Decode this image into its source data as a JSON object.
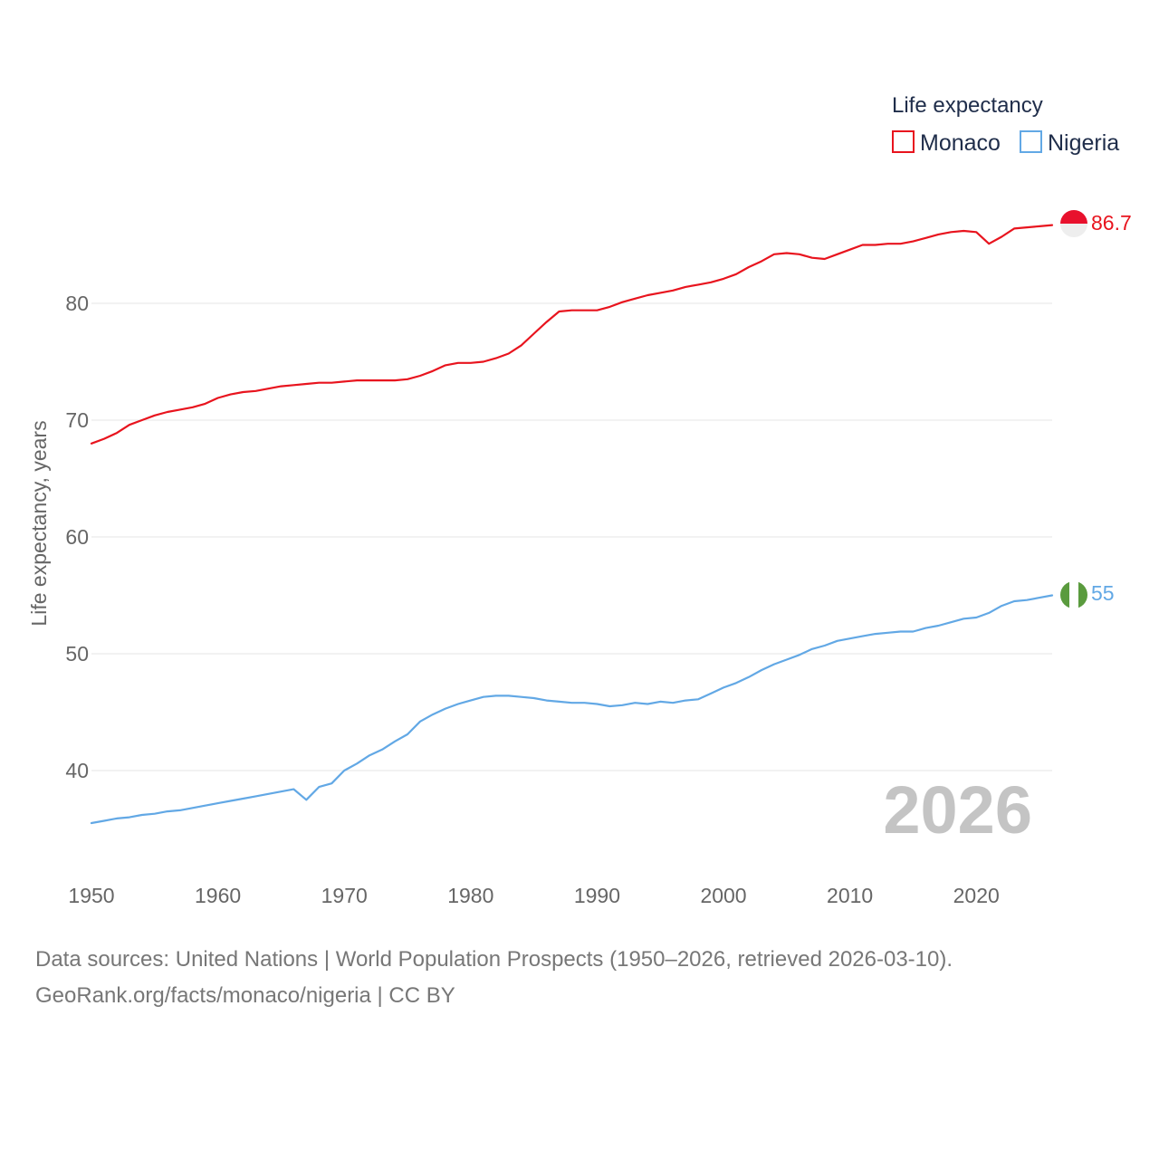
{
  "chart_data": {
    "type": "line",
    "title": "",
    "xlabel": "",
    "ylabel": "Life expectancy, years",
    "xlim": [
      1950,
      2026
    ],
    "ylim": [
      35,
      92
    ],
    "x_ticks": [
      1950,
      1960,
      1970,
      1980,
      1990,
      2000,
      2010,
      2020
    ],
    "y_ticks": [
      40,
      50,
      60,
      70,
      80
    ],
    "grid": true,
    "legend": {
      "title": "Life expectancy",
      "position": "top-right"
    },
    "year_label": "2026",
    "x": [
      1950,
      1951,
      1952,
      1953,
      1954,
      1955,
      1956,
      1957,
      1958,
      1959,
      1960,
      1961,
      1962,
      1963,
      1964,
      1965,
      1966,
      1967,
      1968,
      1969,
      1970,
      1971,
      1972,
      1973,
      1974,
      1975,
      1976,
      1977,
      1978,
      1979,
      1980,
      1981,
      1982,
      1983,
      1984,
      1985,
      1986,
      1987,
      1988,
      1989,
      1990,
      1991,
      1992,
      1993,
      1994,
      1995,
      1996,
      1997,
      1998,
      1999,
      2000,
      2001,
      2002,
      2003,
      2004,
      2005,
      2006,
      2007,
      2008,
      2009,
      2010,
      2011,
      2012,
      2013,
      2014,
      2015,
      2016,
      2017,
      2018,
      2019,
      2020,
      2021,
      2022,
      2023,
      2024,
      2025,
      2026
    ],
    "series": [
      {
        "name": "Monaco",
        "color": "#e8141e",
        "end_label": "86.7",
        "flag": "monaco",
        "values": [
          68.0,
          68.4,
          68.9,
          69.6,
          70.0,
          70.4,
          70.7,
          70.9,
          71.1,
          71.4,
          71.9,
          72.2,
          72.4,
          72.5,
          72.7,
          72.9,
          73.0,
          73.1,
          73.2,
          73.2,
          73.3,
          73.4,
          73.4,
          73.4,
          73.4,
          73.5,
          73.8,
          74.2,
          74.7,
          74.9,
          74.9,
          75.0,
          75.3,
          75.7,
          76.4,
          77.4,
          78.4,
          79.3,
          79.4,
          79.4,
          79.4,
          79.7,
          80.1,
          80.4,
          80.7,
          80.9,
          81.1,
          81.4,
          81.6,
          81.8,
          82.1,
          82.5,
          83.1,
          83.6,
          84.2,
          84.3,
          84.2,
          83.9,
          83.8,
          84.2,
          84.6,
          85.0,
          85.0,
          85.1,
          85.1,
          85.3,
          85.6,
          85.9,
          86.1,
          86.2,
          86.1,
          85.1,
          85.7,
          86.4,
          86.5,
          86.6,
          86.7
        ]
      },
      {
        "name": "Nigeria",
        "color": "#62a8e5",
        "end_label": "55",
        "flag": "nigeria",
        "values": [
          35.5,
          35.7,
          35.9,
          36.0,
          36.2,
          36.3,
          36.5,
          36.6,
          36.8,
          37.0,
          37.2,
          37.4,
          37.6,
          37.8,
          38.0,
          38.2,
          38.4,
          37.5,
          38.6,
          38.9,
          40.0,
          40.6,
          41.3,
          41.8,
          42.5,
          43.1,
          44.2,
          44.8,
          45.3,
          45.7,
          46.0,
          46.3,
          46.4,
          46.4,
          46.3,
          46.2,
          46.0,
          45.9,
          45.8,
          45.8,
          45.7,
          45.5,
          45.6,
          45.8,
          45.7,
          45.9,
          45.8,
          46.0,
          46.1,
          46.6,
          47.1,
          47.5,
          48.0,
          48.6,
          49.1,
          49.5,
          49.9,
          50.4,
          50.7,
          51.1,
          51.3,
          51.5,
          51.7,
          51.8,
          51.9,
          51.9,
          52.2,
          52.4,
          52.7,
          53.0,
          53.1,
          53.5,
          54.1,
          54.5,
          54.6,
          54.8,
          55.0
        ]
      }
    ]
  },
  "footer": {
    "line1": "Data sources: United Nations | World Population Prospects (1950–2026, retrieved 2026-03-10).",
    "line2": "GeoRank.org/facts/monaco/nigeria | CC BY"
  }
}
